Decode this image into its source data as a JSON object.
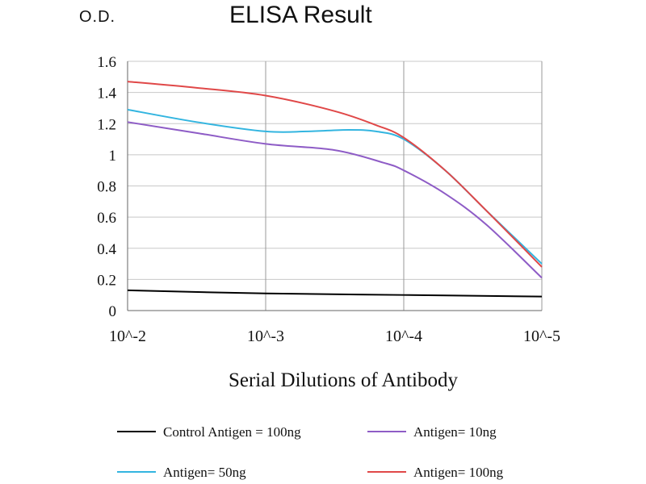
{
  "chart_data": {
    "type": "line",
    "title": "ELISA Result",
    "ylabel": "O.D.",
    "xlabel": "Serial Dilutions of Antibody",
    "x_ticks": [
      "10^-2",
      "10^-3",
      "10^-4",
      "10^-5"
    ],
    "y_ticks": [
      "0",
      "0.2",
      "0.4",
      "0.6",
      "0.8",
      "1",
      "1.2",
      "1.4",
      "1.6"
    ],
    "ylim": [
      0,
      1.6
    ],
    "grid": true,
    "legend_position": "bottom",
    "series": [
      {
        "name": "Control Antigen = 100ng",
        "color": "#000000",
        "points": [
          [
            0,
            0.13
          ],
          [
            1,
            0.11
          ],
          [
            2,
            0.1
          ],
          [
            3,
            0.09
          ]
        ]
      },
      {
        "name": "Antigen= 10ng",
        "color": "#8e5cc6",
        "points": [
          [
            0,
            1.21
          ],
          [
            0.5,
            1.14
          ],
          [
            1,
            1.07
          ],
          [
            1.5,
            1.03
          ],
          [
            1.85,
            0.95
          ],
          [
            2,
            0.9
          ],
          [
            2.3,
            0.75
          ],
          [
            2.6,
            0.55
          ],
          [
            3,
            0.21
          ]
        ]
      },
      {
        "name": "Antigen= 50ng",
        "color": "#33b5e0",
        "points": [
          [
            0,
            1.29
          ],
          [
            0.5,
            1.21
          ],
          [
            1,
            1.15
          ],
          [
            1.3,
            1.15
          ],
          [
            1.6,
            1.16
          ],
          [
            1.8,
            1.15
          ],
          [
            2,
            1.1
          ],
          [
            2.3,
            0.9
          ],
          [
            2.6,
            0.64
          ],
          [
            3,
            0.3
          ]
        ]
      },
      {
        "name": "Antigen= 100ng",
        "color": "#e04848",
        "points": [
          [
            0,
            1.47
          ],
          [
            0.5,
            1.43
          ],
          [
            1,
            1.38
          ],
          [
            1.5,
            1.28
          ],
          [
            1.8,
            1.19
          ],
          [
            2,
            1.11
          ],
          [
            2.3,
            0.9
          ],
          [
            2.6,
            0.64
          ],
          [
            3,
            0.28
          ]
        ]
      }
    ]
  }
}
